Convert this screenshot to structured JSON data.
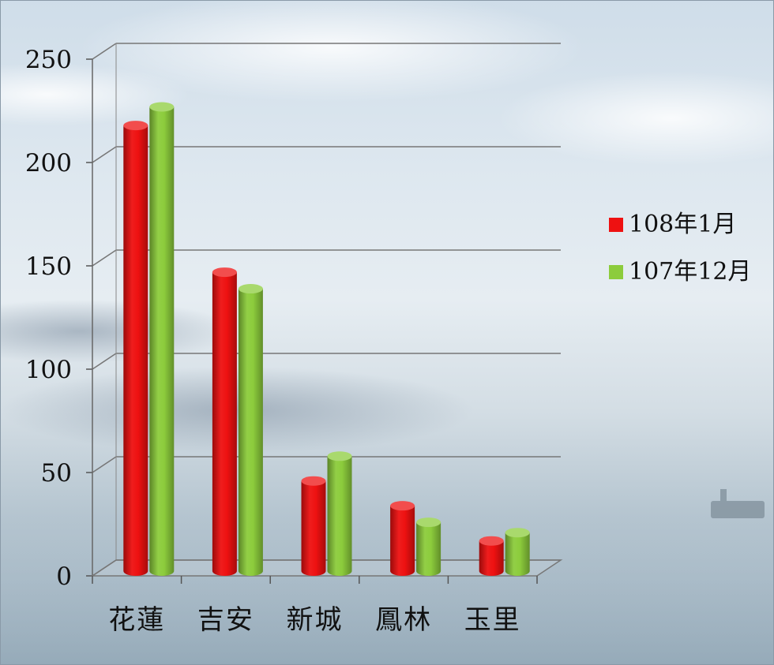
{
  "chart_data": {
    "type": "bar",
    "categories": [
      "花蓮",
      "吉安",
      "新城",
      "鳳林",
      "玉里"
    ],
    "series": [
      {
        "name": "108年1月",
        "values": [
          216,
          145,
          44,
          32,
          15
        ],
        "color": "#ee1111"
      },
      {
        "name": "107年12月",
        "values": [
          225,
          137,
          56,
          24,
          19
        ],
        "color": "#8ccc3c"
      }
    ],
    "yticks": [
      0,
      50,
      100,
      150,
      200,
      250
    ],
    "ylim": [
      0,
      250
    ],
    "grid": true,
    "legend_position": "right",
    "style": "3d-cylinder"
  }
}
